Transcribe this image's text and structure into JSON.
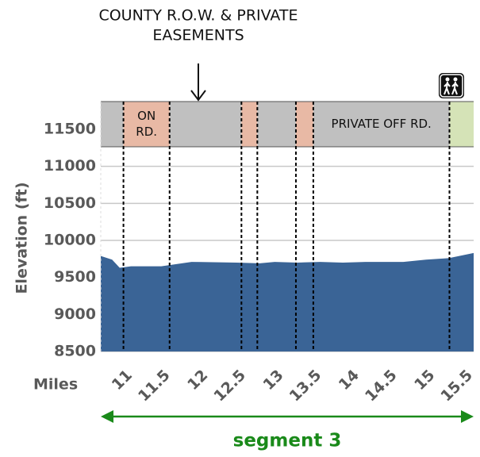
{
  "chart_data": {
    "type": "area",
    "xlabel": "Miles",
    "ylabel": "Elevation (ft)",
    "x": [
      10.7,
      10.85,
      10.95,
      11.1,
      11.5,
      11.9,
      12.5,
      12.8,
      13.0,
      13.3,
      13.6,
      13.9,
      14.2,
      14.7,
      15.0,
      15.3,
      15.63
    ],
    "values": [
      9790,
      9740,
      9630,
      9650,
      9650,
      9710,
      9700,
      9690,
      9710,
      9700,
      9710,
      9700,
      9710,
      9710,
      9740,
      9760,
      9830
    ],
    "color": "#3a6496",
    "xlim": [
      10.7,
      15.63
    ],
    "ylim": [
      8500,
      11875
    ],
    "xticks": [
      11,
      11.5,
      12,
      12.5,
      13,
      13.5,
      14,
      14.5,
      15,
      15.5
    ],
    "yticks": [
      8500,
      9000,
      9500,
      10000,
      10500,
      11000,
      11500
    ],
    "grid": true,
    "bands": [
      {
        "start": 10.7,
        "end": 11.0,
        "color": "#c0c0c0"
      },
      {
        "start": 11.0,
        "end": 11.61,
        "color": "#e8b9a5",
        "label": [
          "ON",
          "RD."
        ]
      },
      {
        "start": 11.61,
        "end": 12.56,
        "color": "#c0c0c0"
      },
      {
        "start": 12.56,
        "end": 12.77,
        "color": "#e8b9a5"
      },
      {
        "start": 12.77,
        "end": 13.28,
        "color": "#c0c0c0"
      },
      {
        "start": 13.28,
        "end": 13.51,
        "color": "#e8b9a5"
      },
      {
        "start": 13.51,
        "end": 15.31,
        "color": "#c0c0c0",
        "label": [
          "PRIVATE OFF RD."
        ]
      },
      {
        "start": 15.31,
        "end": 15.63,
        "color": "#d5e3b7"
      }
    ],
    "annotation": {
      "lines": [
        "COUNTY R.O.W. & PRIVATE",
        "EASEMENTS"
      ],
      "x": 11.99
    },
    "segment_label": "segment 3"
  }
}
